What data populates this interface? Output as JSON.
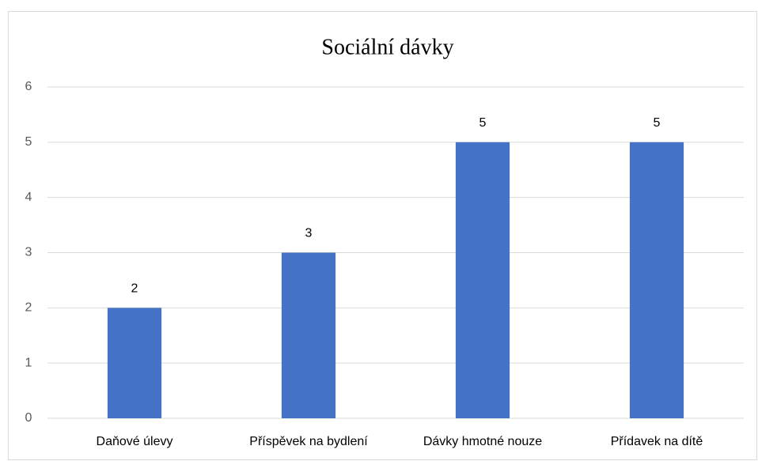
{
  "chart_data": {
    "type": "bar",
    "title": "Sociální dávky",
    "categories": [
      "Daňové úlevy",
      "Příspěvek na bydlení",
      "Dávky hmotné nouze",
      "Přídavek na dítě"
    ],
    "values": [
      2,
      3,
      5,
      5
    ],
    "color": "#4472c4",
    "ylim": [
      0,
      6
    ],
    "yticks": [
      0,
      1,
      2,
      3,
      4,
      5,
      6
    ],
    "grid": true,
    "data_labels": true
  }
}
